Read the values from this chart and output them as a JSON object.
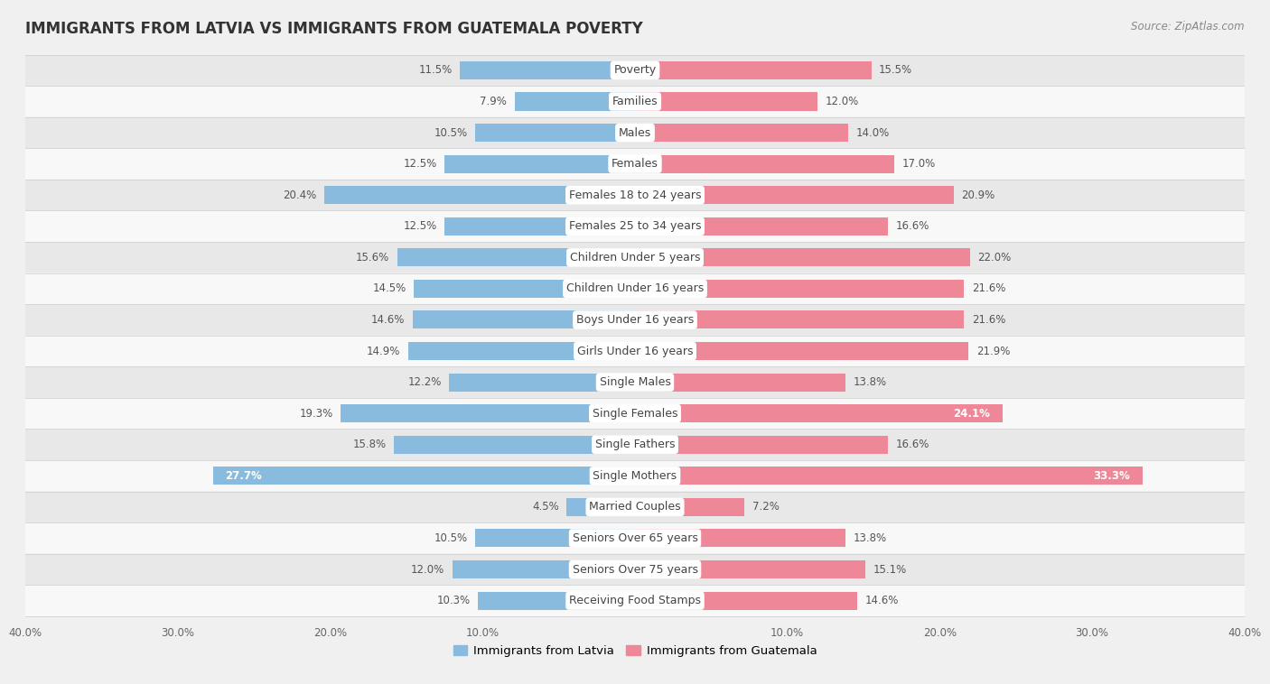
{
  "title": "IMMIGRANTS FROM LATVIA VS IMMIGRANTS FROM GUATEMALA POVERTY",
  "source": "Source: ZipAtlas.com",
  "categories": [
    "Poverty",
    "Families",
    "Males",
    "Females",
    "Females 18 to 24 years",
    "Females 25 to 34 years",
    "Children Under 5 years",
    "Children Under 16 years",
    "Boys Under 16 years",
    "Girls Under 16 years",
    "Single Males",
    "Single Females",
    "Single Fathers",
    "Single Mothers",
    "Married Couples",
    "Seniors Over 65 years",
    "Seniors Over 75 years",
    "Receiving Food Stamps"
  ],
  "latvia_values": [
    11.5,
    7.9,
    10.5,
    12.5,
    20.4,
    12.5,
    15.6,
    14.5,
    14.6,
    14.9,
    12.2,
    19.3,
    15.8,
    27.7,
    4.5,
    10.5,
    12.0,
    10.3
  ],
  "guatemala_values": [
    15.5,
    12.0,
    14.0,
    17.0,
    20.9,
    16.6,
    22.0,
    21.6,
    21.6,
    21.9,
    13.8,
    24.1,
    16.6,
    33.3,
    7.2,
    13.8,
    15.1,
    14.6
  ],
  "latvia_color": "#88BBDD",
  "guatemala_color": "#EE8899",
  "latvia_label": "Immigrants from Latvia",
  "guatemala_label": "Immigrants from Guatemala",
  "xlim": 40.0,
  "row_bg_colors": [
    "#e8e8e8",
    "#f8f8f8"
  ],
  "title_fontsize": 12,
  "source_fontsize": 8.5,
  "label_fontsize": 9,
  "value_fontsize": 8.5,
  "highlight_latvia": [
    13
  ],
  "highlight_guatemala": [
    11,
    13
  ],
  "tick_labels": [
    "40.0%",
    "30.0%",
    "20.0%",
    "10.0%",
    "",
    "10.0%",
    "20.0%",
    "30.0%",
    "40.0%"
  ],
  "tick_positions": [
    -40,
    -30,
    -20,
    -10,
    0,
    10,
    20,
    30,
    40
  ]
}
